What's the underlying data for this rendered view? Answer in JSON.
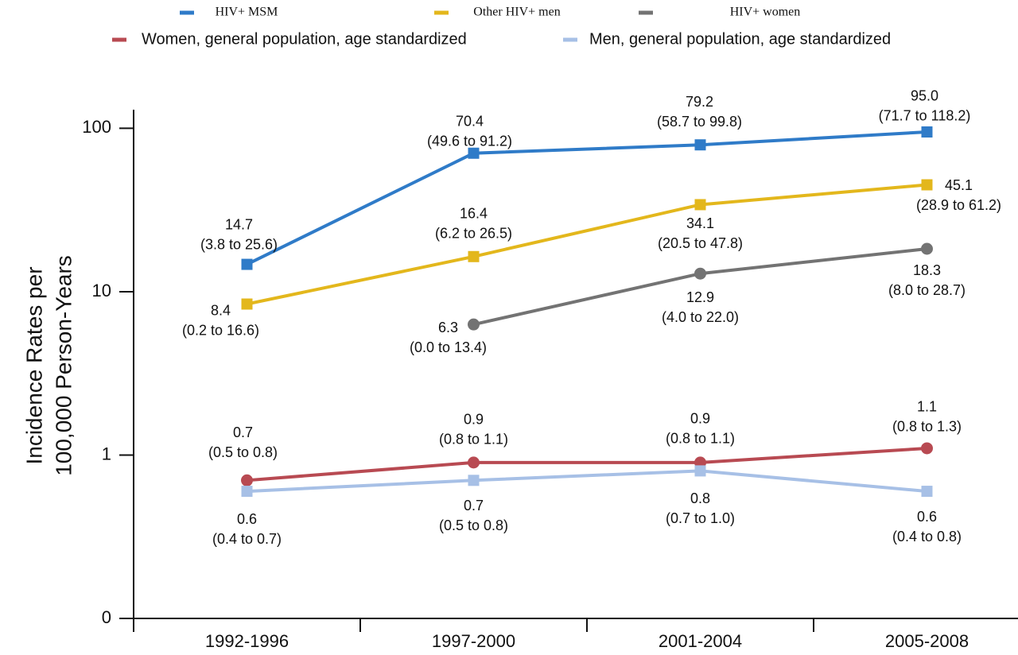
{
  "chart_data": {
    "type": "line",
    "y_label": [
      "Incidence Rates per",
      "100,000 Person-Years"
    ],
    "categories": [
      "1992-1996",
      "1997-2000",
      "2001-2004",
      "2005-2008"
    ],
    "log_scale": true,
    "ylim": [
      0.1,
      130
    ],
    "yticks": [
      {
        "value": 0.1,
        "label": "0"
      },
      1,
      10,
      100
    ],
    "series": [
      {
        "name": "HIV+ MSM",
        "color": "#2f7bc8",
        "marker": "square",
        "values": [
          14.7,
          70.4,
          79.2,
          95
        ],
        "value_labels": [
          "14.7",
          "70.4",
          "79.2",
          "95.0"
        ],
        "interval_labels": [
          "(3.8 to 25.6)",
          "(49.6 to 91.2)",
          "(58.7 to 99.8)",
          "(71.7 to 118.2)"
        ]
      },
      {
        "name": "Other HIV+ men",
        "color": "#e3b71c",
        "marker": "square",
        "values": [
          8.4,
          16.4,
          34.1,
          45.1
        ],
        "interval_labels": [
          "(0.2 to 16.6)",
          "(6.2 to 26.5)",
          "(20.5 to 47.8)",
          "(28.9 to 61.2)"
        ]
      },
      {
        "name": "HIV+ women",
        "color": "#737373",
        "marker": "circle",
        "values": [
          null,
          6.3,
          12.9,
          18.3
        ],
        "interval_labels": [
          null,
          "(0.0 to 13.4)",
          "(4.0 to 22.0)",
          "(8.0 to 28.7)"
        ]
      },
      {
        "name": "Women, general population, age standardized",
        "color": "#b84a52",
        "marker": "circle",
        "values": [
          0.7,
          0.9,
          0.9,
          1.1
        ],
        "interval_labels": [
          "(0.5 to 0.8)",
          "(0.8 to 1.1)",
          "(0.8 to 1.1)",
          "(0.8 to 1.3)"
        ]
      },
      {
        "name": "Men, general population, age standardized",
        "color": "#a7c0e6",
        "marker": "square",
        "values": [
          0.6,
          0.7,
          0.8,
          0.6
        ],
        "interval_labels": [
          "(0.4 to 0.7)",
          "(0.5 to 0.8)",
          "(0.7 to 1.0)",
          "(0.4 to 0.8)"
        ]
      }
    ]
  }
}
